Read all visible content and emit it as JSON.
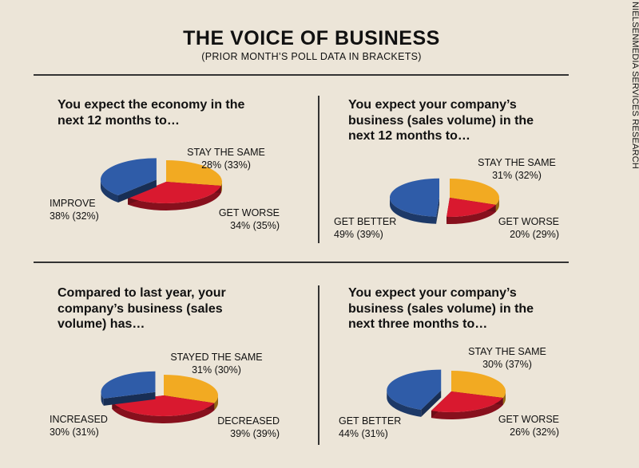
{
  "header": {
    "title": "THE VOICE OF BUSINESS",
    "subtitle": "(PRIOR MONTH’S POLL DATA IN BRACKETS)"
  },
  "credit": "NIELSENMEDIA SERVICES RESEARCH",
  "colors": {
    "background": "#ece5d8",
    "improve_blue": "#2f5ca8",
    "same_orange": "#f2aa22",
    "worse_red": "#d9192f"
  },
  "chart_data": [
    {
      "type": "pie",
      "title": "You expect the economy in the next 12 months to…",
      "slices": [
        {
          "category": "STAY THE SAME",
          "value": 28,
          "prior": 33,
          "display": "28% (33%)",
          "color": "#f2aa22"
        },
        {
          "category": "GET WORSE",
          "value": 34,
          "prior": 35,
          "display": "34% (35%)",
          "color": "#d9192f"
        },
        {
          "category": "IMPROVE",
          "value": 38,
          "prior": 32,
          "display": "38% (32%)",
          "color": "#2f5ca8",
          "exploded": true
        }
      ]
    },
    {
      "type": "pie",
      "title": "You expect your company’s business (sales volume) in the next 12 months to…",
      "slices": [
        {
          "category": "STAY THE SAME",
          "value": 31,
          "prior": 32,
          "display": "31% (32%)",
          "color": "#f2aa22"
        },
        {
          "category": "GET WORSE",
          "value": 20,
          "prior": 29,
          "display": "20% (29%)",
          "color": "#d9192f"
        },
        {
          "category": "GET BETTER",
          "value": 49,
          "prior": 39,
          "display": "49% (39%)",
          "color": "#2f5ca8",
          "exploded": true
        }
      ]
    },
    {
      "type": "pie",
      "title": "Compared to last year, your company’s business (sales volume) has…",
      "slices": [
        {
          "category": "STAYED THE SAME",
          "value": 31,
          "prior": 30,
          "display": "31% (30%)",
          "color": "#f2aa22"
        },
        {
          "category": "DECREASED",
          "value": 39,
          "prior": 39,
          "display": "39% (39%)",
          "color": "#d9192f"
        },
        {
          "category": "INCREASED",
          "value": 30,
          "prior": 31,
          "display": "30% (31%)",
          "color": "#2f5ca8",
          "exploded": true
        }
      ]
    },
    {
      "type": "pie",
      "title": "You expect your company’s business (sales volume) in the next three months to…",
      "slices": [
        {
          "category": "STAY THE SAME",
          "value": 30,
          "prior": 37,
          "display": "30% (37%)",
          "color": "#f2aa22"
        },
        {
          "category": "GET WORSE",
          "value": 26,
          "prior": 32,
          "display": "26% (32%)",
          "color": "#d9192f"
        },
        {
          "category": "GET BETTER",
          "value": 44,
          "prior": 31,
          "display": "44% (31%)",
          "color": "#2f5ca8",
          "exploded": true
        }
      ]
    }
  ]
}
